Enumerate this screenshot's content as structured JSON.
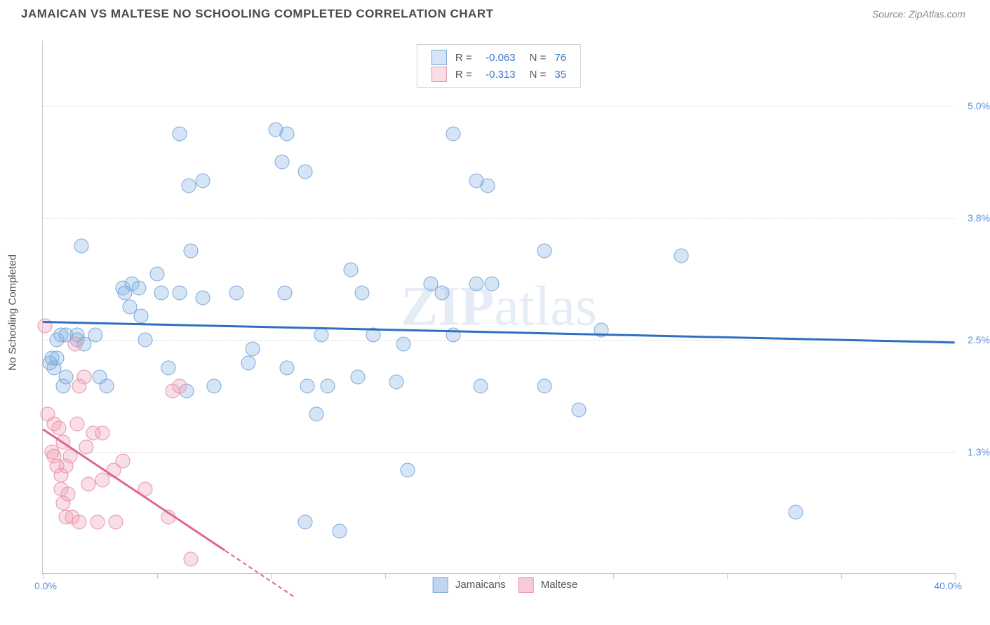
{
  "header": {
    "title": "JAMAICAN VS MALTESE NO SCHOOLING COMPLETED CORRELATION CHART",
    "source_prefix": "Source: ",
    "source_name": "ZipAtlas.com"
  },
  "watermark": {
    "bold": "ZIP",
    "rest": "atlas"
  },
  "chart": {
    "type": "scatter",
    "ylabel": "No Schooling Completed",
    "xlim": [
      0.0,
      40.0
    ],
    "ylim": [
      0.0,
      5.7
    ],
    "x_ticks": [
      0.0,
      5.0,
      10.0,
      15.0,
      20.0,
      25.0,
      30.0,
      35.0,
      40.0
    ],
    "y_grid": [
      1.3,
      2.5,
      3.8,
      5.0
    ],
    "y_grid_labels": [
      "1.3%",
      "2.5%",
      "3.8%",
      "5.0%"
    ],
    "x_min_label": "0.0%",
    "x_max_label": "40.0%",
    "background": "#ffffff",
    "grid_color": "#dcdcdc",
    "axis_color": "#c8c8c8",
    "point_radius": 9.5,
    "series": [
      {
        "key": "jamaicans",
        "label": "Jamaicans",
        "fill": "rgba(138,180,230,0.35)",
        "stroke": "#7aa7d8",
        "trend_color": "#2e6fc0",
        "R": "-0.063",
        "N": "76",
        "trend": {
          "x1": 0.0,
          "y1": 2.7,
          "x2": 40.0,
          "y2": 2.48
        },
        "points": [
          [
            0.3,
            2.25
          ],
          [
            0.4,
            2.3
          ],
          [
            0.5,
            2.2
          ],
          [
            0.6,
            2.5
          ],
          [
            0.6,
            2.3
          ],
          [
            0.8,
            2.55
          ],
          [
            0.9,
            2.0
          ],
          [
            1.0,
            2.55
          ],
          [
            1.0,
            2.1
          ],
          [
            1.5,
            2.55
          ],
          [
            1.5,
            2.5
          ],
          [
            1.7,
            3.5
          ],
          [
            1.8,
            2.45
          ],
          [
            2.3,
            2.55
          ],
          [
            2.5,
            2.1
          ],
          [
            2.8,
            2.0
          ],
          [
            3.5,
            3.05
          ],
          [
            3.6,
            3.0
          ],
          [
            3.8,
            2.85
          ],
          [
            3.9,
            3.1
          ],
          [
            4.2,
            3.05
          ],
          [
            4.3,
            2.75
          ],
          [
            4.5,
            2.5
          ],
          [
            5.0,
            3.2
          ],
          [
            5.2,
            3.0
          ],
          [
            5.5,
            2.2
          ],
          [
            6.0,
            4.7
          ],
          [
            6.0,
            3.0
          ],
          [
            6.3,
            1.95
          ],
          [
            6.4,
            4.15
          ],
          [
            6.5,
            3.45
          ],
          [
            7.0,
            4.2
          ],
          [
            7.0,
            2.95
          ],
          [
            7.5,
            2.0
          ],
          [
            8.5,
            3.0
          ],
          [
            9.0,
            2.25
          ],
          [
            9.2,
            2.4
          ],
          [
            10.2,
            4.75
          ],
          [
            10.5,
            4.4
          ],
          [
            10.6,
            3.0
          ],
          [
            10.7,
            2.2
          ],
          [
            10.7,
            4.7
          ],
          [
            11.5,
            4.3
          ],
          [
            11.5,
            0.55
          ],
          [
            11.6,
            2.0
          ],
          [
            12.0,
            1.7
          ],
          [
            12.2,
            2.55
          ],
          [
            12.5,
            2.0
          ],
          [
            13.0,
            0.45
          ],
          [
            13.5,
            3.25
          ],
          [
            13.8,
            2.1
          ],
          [
            14.0,
            3.0
          ],
          [
            14.5,
            2.55
          ],
          [
            15.5,
            2.05
          ],
          [
            15.8,
            2.45
          ],
          [
            16.0,
            1.1
          ],
          [
            17.0,
            3.1
          ],
          [
            17.5,
            3.0
          ],
          [
            18.0,
            4.7
          ],
          [
            18.0,
            2.55
          ],
          [
            19.2,
            2.0
          ],
          [
            19.0,
            3.1
          ],
          [
            19.5,
            4.15
          ],
          [
            19.7,
            3.1
          ],
          [
            19.0,
            4.2
          ],
          [
            22.0,
            3.45
          ],
          [
            22.0,
            2.0
          ],
          [
            23.5,
            1.75
          ],
          [
            24.5,
            2.6
          ],
          [
            28.0,
            3.4
          ],
          [
            33.0,
            0.65
          ]
        ]
      },
      {
        "key": "maltese",
        "label": "Maltese",
        "fill": "rgba(240,160,180,0.35)",
        "stroke": "#e593ab",
        "trend_color": "#e06690",
        "R": "-0.313",
        "N": "35",
        "trend": {
          "x1": 0.0,
          "y1": 1.55,
          "x2": 8.0,
          "y2": 0.25
        },
        "trend_dash": {
          "x1": 8.0,
          "y1": 0.25,
          "x2": 11.0,
          "y2": -0.24
        },
        "points": [
          [
            0.1,
            2.65
          ],
          [
            0.2,
            1.7
          ],
          [
            0.4,
            1.3
          ],
          [
            0.5,
            1.6
          ],
          [
            0.5,
            1.25
          ],
          [
            0.6,
            1.15
          ],
          [
            0.7,
            1.55
          ],
          [
            0.8,
            1.05
          ],
          [
            0.8,
            0.9
          ],
          [
            0.9,
            0.75
          ],
          [
            0.9,
            1.4
          ],
          [
            1.0,
            0.6
          ],
          [
            1.0,
            1.15
          ],
          [
            1.1,
            0.85
          ],
          [
            1.2,
            1.25
          ],
          [
            1.3,
            0.6
          ],
          [
            1.4,
            2.45
          ],
          [
            1.5,
            1.6
          ],
          [
            1.6,
            2.0
          ],
          [
            1.6,
            0.55
          ],
          [
            1.8,
            2.1
          ],
          [
            1.9,
            1.35
          ],
          [
            2.0,
            0.95
          ],
          [
            2.2,
            1.5
          ],
          [
            2.4,
            0.55
          ],
          [
            2.6,
            1.0
          ],
          [
            2.6,
            1.5
          ],
          [
            3.1,
            1.1
          ],
          [
            3.2,
            0.55
          ],
          [
            3.5,
            1.2
          ],
          [
            4.5,
            0.9
          ],
          [
            5.5,
            0.6
          ],
          [
            5.7,
            1.95
          ],
          [
            6.0,
            2.0
          ],
          [
            6.5,
            0.15
          ]
        ]
      }
    ],
    "bottom_legend": [
      {
        "label": "Jamaicans",
        "fill": "rgba(138,180,230,0.55)",
        "stroke": "#7aa7d8"
      },
      {
        "label": "Maltese",
        "fill": "rgba(240,160,180,0.55)",
        "stroke": "#e593ab"
      }
    ]
  }
}
